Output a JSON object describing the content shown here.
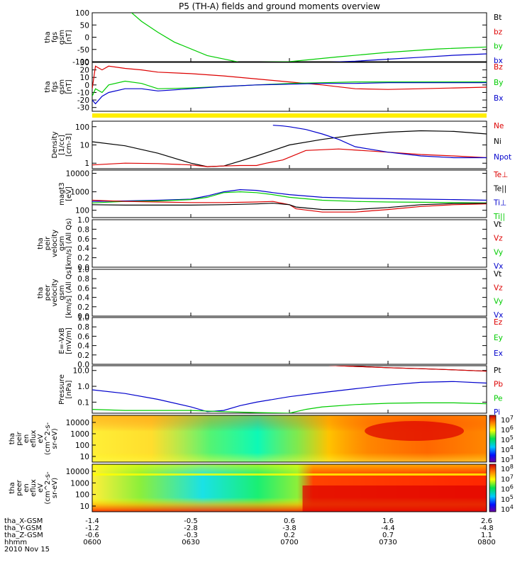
{
  "title": "P5 (TH-A) fields and ground moments overview",
  "colors": {
    "black": "#000000",
    "red": "#dd0000",
    "green": "#00cc00",
    "blue": "#0000cc",
    "yellow": "#ffee00"
  },
  "footer": {
    "rows": [
      {
        "label": "tha_X-GSM",
        "values": [
          "-1.4",
          "-0.5",
          "0.6",
          "1.6",
          "2.6"
        ]
      },
      {
        "label": "tha_Y-GSM",
        "values": [
          "-1.2",
          "-2.8",
          "-3.8",
          "-4.4",
          "-4.8"
        ]
      },
      {
        "label": "tha_Z-GSM",
        "values": [
          "-0.6",
          "-0.3",
          "0.2",
          "0.7",
          "1.1"
        ]
      },
      {
        "label": "hhmm",
        "values": [
          "0600",
          "0630",
          "0700",
          "0730",
          "0800"
        ]
      }
    ],
    "date": "2010 Nov 15"
  },
  "chart_data": {
    "type": "line",
    "title": "P5 (TH-A) fields and ground moments overview",
    "x": {
      "label": "hhmm",
      "ticks": [
        "0600",
        "0630",
        "0700",
        "0730",
        "0800"
      ],
      "range_min": [
        0,
        120
      ]
    },
    "panels": [
      {
        "ylabel": [
          "tha",
          "fgs",
          "gsm",
          "[nT]"
        ],
        "yticks": [
          "100",
          "50",
          "0",
          "-50",
          "-100"
        ],
        "ylim": [
          -100,
          100
        ],
        "scale": "linear",
        "legend": [
          "Bt",
          "bz",
          "by",
          "bx"
        ],
        "legend_colors": [
          "black",
          "red",
          "green",
          "blue"
        ],
        "series": [
          {
            "name": "by",
            "color": "green",
            "x": [
              12,
              15,
              20,
              25,
              35,
              45,
              60,
              75,
              90,
              105,
              120
            ],
            "y": [
              100,
              65,
              20,
              -20,
              -75,
              -103,
              -100,
              -80,
              -62,
              -48,
              -40
            ]
          },
          {
            "name": "bx",
            "color": "blue",
            "x": [
              70,
              80,
              90,
              100,
              110,
              120
            ],
            "y": [
              -103,
              -98,
              -90,
              -82,
              -74,
              -68
            ]
          }
        ]
      },
      {
        "ylabel": [
          "tha",
          "fgs",
          "gsm",
          "[nT]"
        ],
        "yticks": [
          "30",
          "20",
          "10",
          "0",
          "-10",
          "-20",
          "-30"
        ],
        "ylim": [
          -35,
          30
        ],
        "scale": "linear",
        "legend": [
          "Bz",
          "By",
          "Bx"
        ],
        "legend_colors": [
          "red",
          "green",
          "blue"
        ],
        "series": [
          {
            "name": "Bz",
            "color": "red",
            "x": [
              0,
              1,
              3,
              5,
              10,
              15,
              20,
              30,
              40,
              50,
              60,
              70,
              80,
              90,
              100,
              110,
              120
            ],
            "y": [
              -5,
              25,
              20,
              25,
              22,
              20,
              17,
              15,
              12,
              8,
              4,
              0,
              -5,
              -6,
              -5,
              -4,
              -3
            ]
          },
          {
            "name": "By",
            "color": "green",
            "x": [
              0,
              1,
              3,
              5,
              10,
              15,
              20,
              30,
              40,
              50,
              60,
              70,
              80,
              90,
              100,
              110,
              120
            ],
            "y": [
              -15,
              -5,
              -10,
              0,
              5,
              2,
              -5,
              -4,
              -2,
              0,
              2,
              3,
              4,
              4,
              4,
              4,
              4
            ]
          },
          {
            "name": "Bx",
            "color": "blue",
            "x": [
              0,
              1,
              3,
              5,
              10,
              15,
              20,
              30,
              40,
              50,
              60,
              70,
              80,
              90,
              100,
              110,
              120
            ],
            "y": [
              -20,
              -25,
              -15,
              -10,
              -5,
              -5,
              -8,
              -5,
              -2,
              0,
              1,
              2,
              2,
              3,
              3,
              3,
              3
            ]
          }
        ]
      },
      {
        "type": "bar",
        "color": "yellow"
      },
      {
        "ylabel": [
          "Density",
          "[1/cc]",
          "[cm-3]"
        ],
        "yticks": [
          "100",
          "10",
          "1"
        ],
        "ylim": [
          0.5,
          200
        ],
        "scale": "log",
        "legend": [
          "Ne",
          "Ni",
          "Npot"
        ],
        "legend_colors": [
          "red",
          "black",
          "blue"
        ],
        "series": [
          {
            "name": "Ni",
            "color": "black",
            "x": [
              0,
              10,
              20,
              30,
              35,
              40,
              45,
              50,
              55,
              60,
              70,
              80,
              90,
              100,
              110,
              120
            ],
            "y": [
              15,
              9,
              3.5,
              1,
              0.65,
              0.7,
              1.3,
              2.5,
              5,
              10,
              20,
              35,
              50,
              60,
              55,
              40
            ]
          },
          {
            "name": "Ne",
            "color": "red",
            "x": [
              0,
              10,
              20,
              30,
              35,
              40,
              45,
              50,
              53,
              58,
              65,
              75,
              90,
              100,
              110,
              120
            ],
            "y": [
              0.8,
              1,
              0.95,
              0.8,
              0.65,
              0.7,
              0.75,
              0.75,
              1,
              1.5,
              5,
              6,
              4,
              3,
              2.5,
              2
            ]
          },
          {
            "name": "Npot",
            "color": "blue",
            "x": [
              55,
              58,
              60,
              65,
              70,
              75,
              80,
              90,
              100,
              110,
              120
            ],
            "y": [
              120,
              110,
              100,
              70,
              40,
              20,
              8,
              4,
              2.5,
              2,
              2
            ]
          }
        ]
      },
      {
        "ylabel": [
          "magt3",
          "[eV]"
        ],
        "yticks": [
          "10000",
          "1000",
          "100"
        ],
        "ylim": [
          40,
          15000
        ],
        "scale": "log",
        "legend": [
          "Te⊥",
          "Te||",
          "Ti⊥",
          "Ti||"
        ],
        "legend_colors": [
          "red",
          "black",
          "blue",
          "green"
        ],
        "series": [
          {
            "name": "Ti⊥",
            "color": "blue",
            "x": [
              0,
              10,
              20,
              30,
              35,
              40,
              45,
              50,
              55,
              60,
              70,
              80,
              90,
              100,
              110,
              120
            ],
            "y": [
              300,
              320,
              350,
              400,
              600,
              1000,
              1300,
              1200,
              900,
              700,
              500,
              450,
              420,
              400,
              380,
              350
            ]
          },
          {
            "name": "Ti||",
            "color": "green",
            "x": [
              0,
              10,
              20,
              30,
              35,
              40,
              45,
              50,
              55,
              60,
              70,
              80,
              90,
              100,
              110,
              120
            ],
            "y": [
              250,
              300,
              320,
              380,
              500,
              900,
              1000,
              900,
              700,
              500,
              350,
              300,
              280,
              270,
              260,
              250
            ]
          },
          {
            "name": "Te⊥",
            "color": "red",
            "x": [
              0,
              10,
              20,
              30,
              40,
              50,
              55,
              60,
              62,
              70,
              80,
              90,
              100,
              110,
              120
            ],
            "y": [
              350,
              300,
              280,
              260,
              260,
              280,
              300,
              200,
              120,
              80,
              80,
              110,
              160,
              200,
              220
            ]
          },
          {
            "name": "Te||",
            "color": "black",
            "x": [
              0,
              10,
              20,
              30,
              40,
              50,
              55,
              60,
              62,
              70,
              80,
              90,
              100,
              110,
              120
            ],
            "y": [
              200,
              190,
              190,
              190,
              200,
              220,
              240,
              200,
              150,
              110,
              110,
              140,
              200,
              230,
              240
            ]
          }
        ]
      },
      {
        "ylabel": [
          "tha",
          "peir",
          "velocity",
          "gsm",
          "[km/s] (All Qs)"
        ],
        "yticks": [
          "1.0",
          "0.8",
          "0.6",
          "0.4",
          "0.2",
          "0.0"
        ],
        "ylim": [
          0,
          1
        ],
        "scale": "linear",
        "legend": [
          "Vt",
          "Vz",
          "Vy",
          "Vx"
        ],
        "legend_colors": [
          "black",
          "red",
          "green",
          "blue"
        ],
        "series": []
      },
      {
        "ylabel": [
          "tha",
          "peer",
          "velocity",
          "gsm",
          "[km/s] (All Qs)"
        ],
        "yticks": [
          "1.0",
          "0.8",
          "0.6",
          "0.4",
          "0.2",
          "0.0"
        ],
        "ylim": [
          0,
          1
        ],
        "scale": "linear",
        "legend": [
          "Vt",
          "Vz",
          "Vy",
          "Vx"
        ],
        "legend_colors": [
          "black",
          "red",
          "green",
          "blue"
        ],
        "series": []
      },
      {
        "ylabel": [
          "E=-VxB",
          "[mV/m]"
        ],
        "yticks": [
          "1.0",
          "0.8",
          "0.6",
          "0.4",
          "0.2",
          "0.0"
        ],
        "ylim": [
          0,
          1
        ],
        "scale": "linear",
        "legend": [
          "Ez",
          "Ey",
          "Ex"
        ],
        "legend_colors": [
          "red",
          "green",
          "blue"
        ],
        "series": []
      },
      {
        "ylabel": [
          "Pressure",
          "[nPa]"
        ],
        "yticks": [
          "10.0",
          "1.0",
          "0.1"
        ],
        "ylim": [
          0.02,
          20
        ],
        "scale": "log",
        "legend": [
          "Pt",
          "Pb",
          "Pe",
          "Pi"
        ],
        "legend_colors": [
          "black",
          "red",
          "green",
          "blue"
        ],
        "series": [
          {
            "name": "Pi",
            "color": "blue",
            "x": [
              0,
              10,
              20,
              30,
              35,
              40,
              45,
              50,
              60,
              70,
              80,
              90,
              100,
              110,
              120
            ],
            "y": [
              0.6,
              0.35,
              0.15,
              0.05,
              0.025,
              0.03,
              0.06,
              0.1,
              0.22,
              0.4,
              0.7,
              1.2,
              1.8,
              2,
              1.6
            ]
          },
          {
            "name": "Pe",
            "color": "green",
            "x": [
              0,
              10,
              20,
              30,
              40,
              50,
              60,
              65,
              70,
              80,
              90,
              100,
              110,
              120
            ],
            "y": [
              0.035,
              0.03,
              0.03,
              0.03,
              0.025,
              0.022,
              0.02,
              0.035,
              0.05,
              0.07,
              0.085,
              0.09,
              0.09,
              0.08
            ]
          },
          {
            "name": "Pt",
            "color": "black",
            "x": [
              70,
              80,
              90,
              100,
              110,
              120
            ],
            "y": [
              22,
              18,
              15,
              13,
              11,
              9
            ]
          },
          {
            "name": "Pb",
            "color": "red",
            "x": [
              72,
              80,
              90,
              100,
              110,
              120
            ],
            "y": [
              21,
              18,
              15,
              13,
              11,
              9
            ]
          }
        ]
      },
      {
        "type": "spectrogram",
        "ylabel": [
          "tha",
          "peir",
          "en",
          "eflux",
          "eV",
          "(cm^2-s-",
          "sr-eV)"
        ],
        "yticks": [
          "10000",
          "1000",
          "100",
          "10"
        ],
        "colorbar_ticks": [
          "10^7",
          "10^6",
          "10^5",
          "10^4",
          "10^3"
        ]
      },
      {
        "type": "spectrogram",
        "ylabel": [
          "tha",
          "peer",
          "en",
          "eflux",
          "eV",
          "(cm^2-s-",
          "sr-eV)"
        ],
        "yticks": [
          "10000",
          "1000",
          "100",
          "10"
        ],
        "colorbar_ticks": [
          "10^8",
          "10^7",
          "10^6",
          "10^5",
          "10^4"
        ]
      }
    ]
  }
}
